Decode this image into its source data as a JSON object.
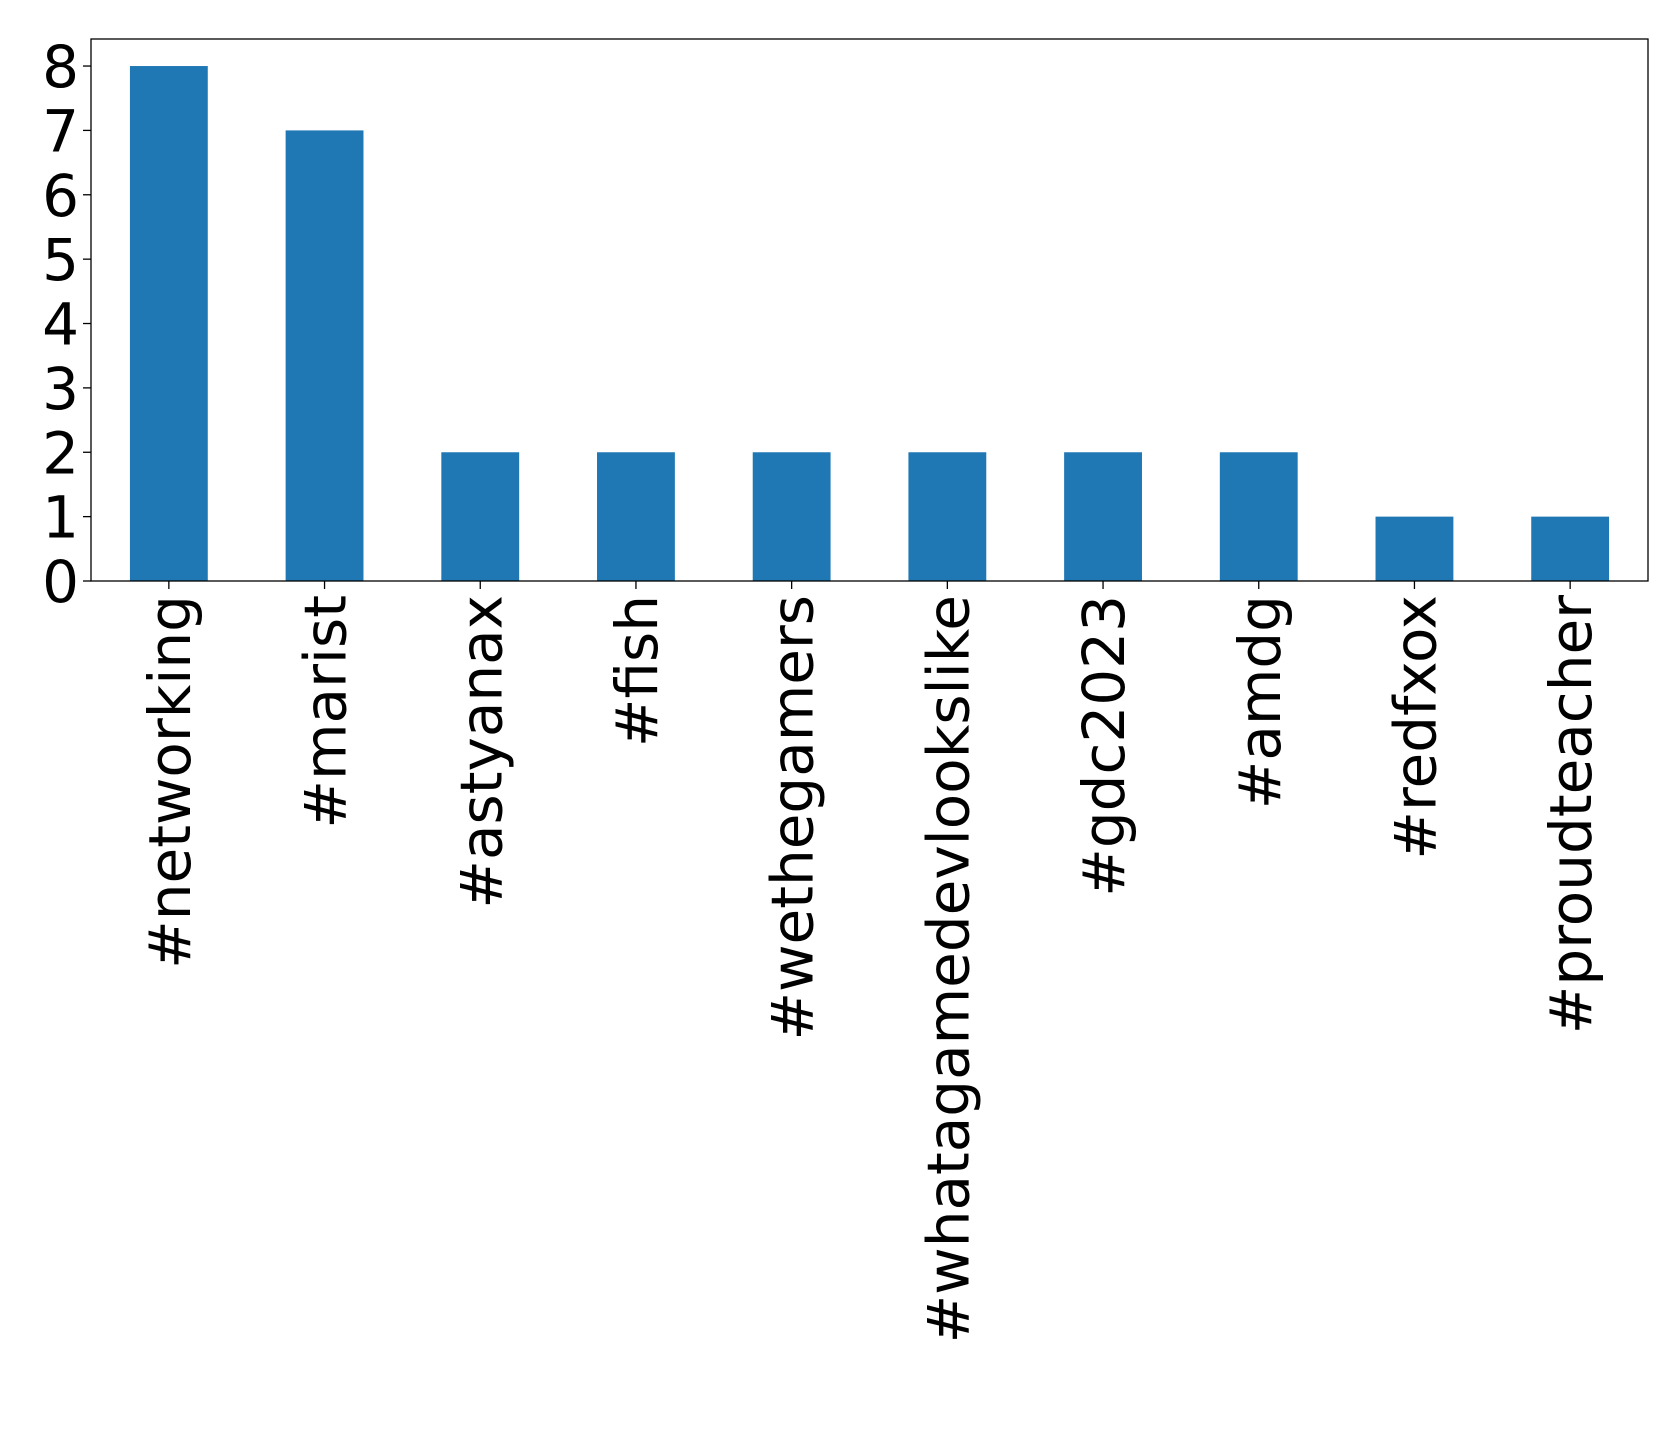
{
  "chart_data": {
    "type": "bar",
    "categories": [
      "#networking",
      "#marist",
      "#astyanax",
      "#fish",
      "#wethegamers",
      "#whatagamedevlookslike",
      "#gdc2023",
      "#amdg",
      "#redfxox",
      "#proudteacher"
    ],
    "values": [
      8,
      7,
      2,
      2,
      2,
      2,
      2,
      2,
      1,
      1
    ],
    "color": "#1f77b4",
    "ylim": [
      0,
      8.42
    ],
    "yticks": [
      0,
      1,
      2,
      3,
      4,
      5,
      6,
      7,
      8
    ],
    "grid": false
  }
}
